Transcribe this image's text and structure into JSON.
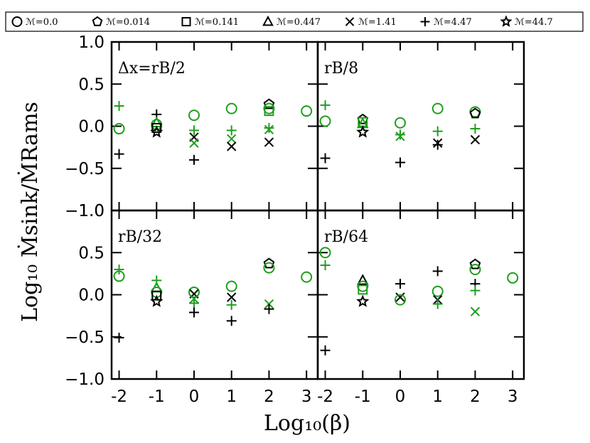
{
  "legend": {
    "entries": [
      {
        "label": "ℳ=0.0",
        "marker": "circle"
      },
      {
        "label": "ℳ=0.014",
        "marker": "pentagon"
      },
      {
        "label": "ℳ=0.141",
        "marker": "square"
      },
      {
        "label": "ℳ=0.447",
        "marker": "triangle"
      },
      {
        "label": "ℳ=1.41",
        "marker": "x"
      },
      {
        "label": "ℳ=4.47",
        "marker": "plus"
      },
      {
        "label": "ℳ=44.7",
        "marker": "star"
      }
    ]
  },
  "axes": {
    "xlabel": "Log₁₀(β)",
    "ylabel": "Log₁₀ Ṁsink/ṀRams",
    "x_tick_labels": [
      "-2",
      "-1",
      "0",
      "1",
      "2",
      "3"
    ],
    "y_tick_labels": [
      "1.0",
      "0.5",
      "0.0",
      "−0.5",
      "−1.0"
    ]
  },
  "colors": {
    "green": "#1e9e1e",
    "black": "#000000"
  },
  "chart_data": {
    "type": "scatter",
    "xlim": [
      -2.2,
      3.3
    ],
    "ylim": [
      -1.0,
      1.0
    ],
    "x_ticks": [
      -2,
      -1,
      0,
      1,
      2,
      3
    ],
    "y_ticks": [
      -1.0,
      -0.5,
      0.0,
      0.5,
      1.0
    ],
    "grid": false,
    "legend_position": "top",
    "panels": [
      {
        "label": "Δx=rB/2",
        "points": [
          {
            "x": -2,
            "y": 0.24,
            "m": "plus",
            "c": "green"
          },
          {
            "x": -2,
            "y": -0.03,
            "m": "circle",
            "c": "green"
          },
          {
            "x": -2,
            "y": -0.33,
            "m": "plus",
            "c": "black"
          },
          {
            "x": -1,
            "y": 0.14,
            "m": "plus",
            "c": "black"
          },
          {
            "x": -1,
            "y": 0.04,
            "m": "triangle",
            "c": "green"
          },
          {
            "x": -1,
            "y": 0.02,
            "m": "circle",
            "c": "green"
          },
          {
            "x": -1,
            "y": -0.02,
            "m": "square",
            "c": "black"
          },
          {
            "x": -1,
            "y": -0.07,
            "m": "star",
            "c": "black"
          },
          {
            "x": 0,
            "y": 0.13,
            "m": "circle",
            "c": "green"
          },
          {
            "x": 0,
            "y": -0.05,
            "m": "plus",
            "c": "green"
          },
          {
            "x": 0,
            "y": -0.13,
            "m": "x",
            "c": "black"
          },
          {
            "x": 0,
            "y": -0.2,
            "m": "x",
            "c": "green"
          },
          {
            "x": 0,
            "y": -0.4,
            "m": "plus",
            "c": "black"
          },
          {
            "x": 1,
            "y": 0.21,
            "m": "circle",
            "c": "green"
          },
          {
            "x": 1,
            "y": -0.05,
            "m": "plus",
            "c": "green"
          },
          {
            "x": 1,
            "y": -0.15,
            "m": "x",
            "c": "green"
          },
          {
            "x": 1,
            "y": -0.24,
            "m": "x",
            "c": "black"
          },
          {
            "x": 2,
            "y": 0.26,
            "m": "pentagon",
            "c": "black"
          },
          {
            "x": 2,
            "y": 0.21,
            "m": "circle",
            "c": "green"
          },
          {
            "x": 2,
            "y": 0.18,
            "m": "square",
            "c": "green"
          },
          {
            "x": 2,
            "y": -0.02,
            "m": "plus",
            "c": "green"
          },
          {
            "x": 2,
            "y": -0.04,
            "m": "x",
            "c": "green"
          },
          {
            "x": 2,
            "y": -0.19,
            "m": "x",
            "c": "black"
          },
          {
            "x": 3,
            "y": 0.18,
            "m": "circle",
            "c": "green"
          }
        ]
      },
      {
        "label": "rB/8",
        "points": [
          {
            "x": -2,
            "y": 0.25,
            "m": "plus",
            "c": "green"
          },
          {
            "x": -2,
            "y": 0.06,
            "m": "circle",
            "c": "green"
          },
          {
            "x": -2,
            "y": -0.38,
            "m": "plus",
            "c": "black"
          },
          {
            "x": -1,
            "y": 0.08,
            "m": "pentagon",
            "c": "black"
          },
          {
            "x": -1,
            "y": 0.05,
            "m": "square",
            "c": "green"
          },
          {
            "x": -1,
            "y": 0.03,
            "m": "triangle",
            "c": "green"
          },
          {
            "x": -1,
            "y": -0.07,
            "m": "star",
            "c": "black"
          },
          {
            "x": 0,
            "y": 0.04,
            "m": "circle",
            "c": "green"
          },
          {
            "x": 0,
            "y": -0.1,
            "m": "plus",
            "c": "green"
          },
          {
            "x": 0,
            "y": -0.12,
            "m": "x",
            "c": "green"
          },
          {
            "x": 0,
            "y": -0.43,
            "m": "plus",
            "c": "black"
          },
          {
            "x": 1,
            "y": 0.21,
            "m": "circle",
            "c": "green"
          },
          {
            "x": 1,
            "y": -0.06,
            "m": "plus",
            "c": "green"
          },
          {
            "x": 1,
            "y": -0.2,
            "m": "x",
            "c": "black"
          },
          {
            "x": 1,
            "y": -0.22,
            "m": "plus",
            "c": "black"
          },
          {
            "x": 2,
            "y": 0.17,
            "m": "circle",
            "c": "green"
          },
          {
            "x": 2,
            "y": 0.15,
            "m": "pentagon",
            "c": "black"
          },
          {
            "x": 2,
            "y": -0.03,
            "m": "plus",
            "c": "green"
          },
          {
            "x": 2,
            "y": -0.16,
            "m": "x",
            "c": "black"
          }
        ]
      },
      {
        "label": "rB/32",
        "points": [
          {
            "x": -2,
            "y": 0.3,
            "m": "plus",
            "c": "green"
          },
          {
            "x": -2,
            "y": 0.22,
            "m": "circle",
            "c": "green"
          },
          {
            "x": -2,
            "y": -0.51,
            "m": "plus",
            "c": "black"
          },
          {
            "x": -1,
            "y": 0.17,
            "m": "plus",
            "c": "green"
          },
          {
            "x": -1,
            "y": 0.08,
            "m": "triangle",
            "c": "green"
          },
          {
            "x": -1,
            "y": 0.03,
            "m": "circle",
            "c": "green"
          },
          {
            "x": -1,
            "y": -0.01,
            "m": "square",
            "c": "black"
          },
          {
            "x": -1,
            "y": -0.08,
            "m": "star",
            "c": "black"
          },
          {
            "x": 0,
            "y": 0.03,
            "m": "circle",
            "c": "green"
          },
          {
            "x": 0,
            "y": 0.01,
            "m": "x",
            "c": "black"
          },
          {
            "x": 0,
            "y": -0.05,
            "m": "x",
            "c": "green"
          },
          {
            "x": 0,
            "y": -0.1,
            "m": "plus",
            "c": "green"
          },
          {
            "x": 0,
            "y": -0.21,
            "m": "plus",
            "c": "black"
          },
          {
            "x": 1,
            "y": 0.1,
            "m": "circle",
            "c": "green"
          },
          {
            "x": 1,
            "y": -0.03,
            "m": "x",
            "c": "black"
          },
          {
            "x": 1,
            "y": -0.12,
            "m": "plus",
            "c": "green"
          },
          {
            "x": 1,
            "y": -0.31,
            "m": "plus",
            "c": "black"
          },
          {
            "x": 2,
            "y": 0.37,
            "m": "pentagon",
            "c": "black"
          },
          {
            "x": 2,
            "y": 0.32,
            "m": "circle",
            "c": "green"
          },
          {
            "x": 2,
            "y": -0.11,
            "m": "x",
            "c": "green"
          },
          {
            "x": 2,
            "y": -0.17,
            "m": "plus",
            "c": "black"
          },
          {
            "x": 3,
            "y": 0.21,
            "m": "circle",
            "c": "green"
          }
        ]
      },
      {
        "label": "rB/64",
        "points": [
          {
            "x": -2,
            "y": 0.5,
            "m": "circle",
            "c": "green"
          },
          {
            "x": -2,
            "y": 0.35,
            "m": "plus",
            "c": "green"
          },
          {
            "x": -2,
            "y": -0.66,
            "m": "plus",
            "c": "black"
          },
          {
            "x": -1,
            "y": 0.17,
            "m": "triangle",
            "c": "black"
          },
          {
            "x": -1,
            "y": 0.1,
            "m": "circle",
            "c": "green"
          },
          {
            "x": -1,
            "y": 0.06,
            "m": "square",
            "c": "green"
          },
          {
            "x": -1,
            "y": -0.08,
            "m": "star",
            "c": "black"
          },
          {
            "x": 0,
            "y": 0.13,
            "m": "plus",
            "c": "black"
          },
          {
            "x": 0,
            "y": -0.03,
            "m": "x",
            "c": "black"
          },
          {
            "x": 0,
            "y": -0.06,
            "m": "circle",
            "c": "green"
          },
          {
            "x": 1,
            "y": 0.28,
            "m": "plus",
            "c": "black"
          },
          {
            "x": 1,
            "y": 0.04,
            "m": "circle",
            "c": "green"
          },
          {
            "x": 1,
            "y": -0.06,
            "m": "x",
            "c": "black"
          },
          {
            "x": 1,
            "y": -0.11,
            "m": "plus",
            "c": "green"
          },
          {
            "x": 2,
            "y": 0.36,
            "m": "pentagon",
            "c": "black"
          },
          {
            "x": 2,
            "y": 0.3,
            "m": "circle",
            "c": "green"
          },
          {
            "x": 2,
            "y": 0.13,
            "m": "plus",
            "c": "black"
          },
          {
            "x": 2,
            "y": 0.05,
            "m": "plus",
            "c": "green"
          },
          {
            "x": 2,
            "y": -0.2,
            "m": "x",
            "c": "green"
          },
          {
            "x": 3,
            "y": 0.2,
            "m": "circle",
            "c": "green"
          }
        ]
      }
    ]
  }
}
